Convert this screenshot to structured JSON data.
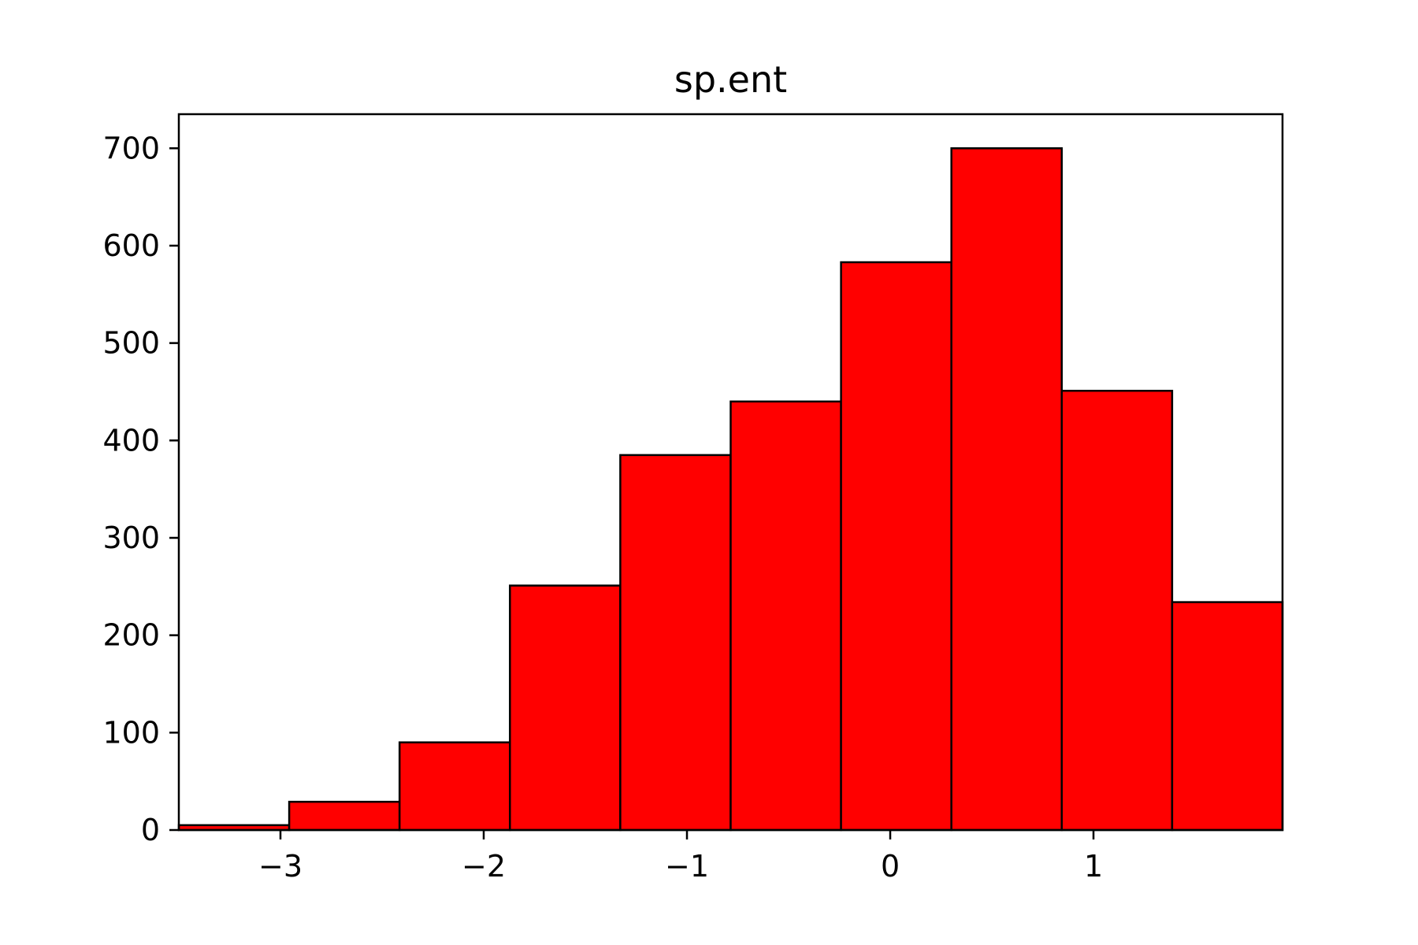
{
  "chart_data": {
    "type": "bar",
    "title": "sp.ent",
    "xlabel": "",
    "ylabel": "",
    "bin_edges": [
      -3.5,
      -2.957,
      -2.414,
      -1.871,
      -1.328,
      -0.785,
      -0.242,
      0.301,
      0.844,
      1.387,
      1.93
    ],
    "values": [
      5,
      29,
      90,
      251,
      385,
      440,
      583,
      700,
      451,
      234
    ],
    "xlim": [
      -3.5,
      1.93
    ],
    "ylim": [
      0,
      735
    ],
    "x_ticks": [
      -3,
      -2,
      -1,
      0,
      1
    ],
    "x_tick_labels": [
      "−3",
      "−2",
      "−1",
      "0",
      "1"
    ],
    "y_ticks": [
      0,
      100,
      200,
      300,
      400,
      500,
      600,
      700
    ],
    "y_tick_labels": [
      "0",
      "100",
      "200",
      "300",
      "400",
      "500",
      "600",
      "700"
    ],
    "bar_color": "#ff0000",
    "edge_color": "#000000",
    "grid": false,
    "legend": "none"
  }
}
